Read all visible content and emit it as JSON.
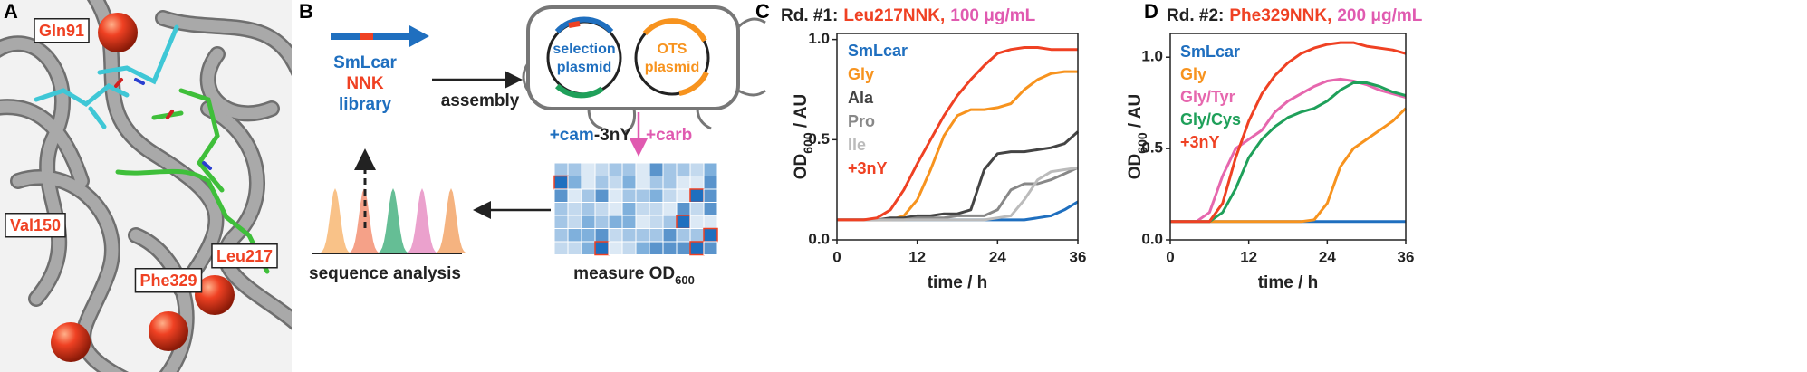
{
  "panel_labels": [
    "A",
    "B",
    "C",
    "D"
  ],
  "structure": {
    "residues": [
      "Gln91",
      "Val150",
      "Phe329",
      "Leu217"
    ]
  },
  "scheme": {
    "library": [
      "SmLcar",
      "NNK",
      "library"
    ],
    "assembly": "assembly",
    "selection_plasmid": [
      "selection",
      "plasmid"
    ],
    "ots_plasmid": [
      "OTS",
      "plasmid"
    ],
    "selection": {
      "cam": "+cam",
      "nY": "-3nY",
      "carb": "+carb"
    },
    "measure": {
      "text": "measure OD",
      "sub": "600"
    },
    "analysis": "sequence analysis"
  },
  "chart_data": [
    {
      "type": "line",
      "title": {
        "round": "Rd. #1:",
        "mutant": "Leu217NNK,",
        "conc": "100 μg/mL"
      },
      "ylabel": {
        "text": "OD",
        "sub": "600",
        "unit": " / AU"
      },
      "xlabel": "time / h",
      "x": [
        0,
        2,
        4,
        6,
        8,
        10,
        12,
        14,
        16,
        18,
        20,
        22,
        24,
        26,
        28,
        30,
        32,
        34,
        36
      ],
      "xlim": [
        0,
        36
      ],
      "xticks": [
        0,
        12,
        24,
        36
      ],
      "ylim": [
        0,
        1.03
      ],
      "yticks": [
        {
          "value": 0,
          "label": "0.0"
        },
        0.5,
        {
          "value": 1,
          "label": "1.0"
        }
      ],
      "series": [
        {
          "name": "SmLcar",
          "color": "#1f6fbf",
          "values": [
            0.1,
            0.1,
            0.1,
            0.1,
            0.1,
            0.1,
            0.1,
            0.1,
            0.1,
            0.1,
            0.1,
            0.1,
            0.1,
            0.1,
            0.1,
            0.11,
            0.12,
            0.15,
            0.19
          ]
        },
        {
          "name": "Gly",
          "color": "#f7931e",
          "values": [
            0.1,
            0.1,
            0.1,
            0.1,
            0.1,
            0.12,
            0.2,
            0.35,
            0.52,
            0.62,
            0.65,
            0.65,
            0.66,
            0.68,
            0.75,
            0.8,
            0.83,
            0.84,
            0.84
          ]
        },
        {
          "name": "Ala",
          "color": "#444444",
          "values": [
            0.1,
            0.1,
            0.1,
            0.1,
            0.11,
            0.11,
            0.12,
            0.12,
            0.13,
            0.13,
            0.15,
            0.35,
            0.43,
            0.44,
            0.44,
            0.45,
            0.46,
            0.48,
            0.54
          ]
        },
        {
          "name": "Pro",
          "color": "#888888",
          "values": [
            0.1,
            0.1,
            0.1,
            0.1,
            0.1,
            0.1,
            0.11,
            0.11,
            0.11,
            0.12,
            0.12,
            0.12,
            0.15,
            0.25,
            0.28,
            0.28,
            0.3,
            0.33,
            0.36
          ]
        },
        {
          "name": "Ile",
          "color": "#bbbbbb",
          "values": [
            0.1,
            0.1,
            0.1,
            0.1,
            0.1,
            0.1,
            0.1,
            0.1,
            0.1,
            0.1,
            0.1,
            0.1,
            0.11,
            0.12,
            0.2,
            0.3,
            0.34,
            0.35,
            0.36
          ]
        },
        {
          "name": "+3nY",
          "color": "#ef4123",
          "values": [
            0.1,
            0.1,
            0.1,
            0.11,
            0.15,
            0.25,
            0.38,
            0.5,
            0.62,
            0.72,
            0.8,
            0.87,
            0.93,
            0.95,
            0.96,
            0.96,
            0.95,
            0.95,
            0.95
          ]
        }
      ]
    },
    {
      "type": "line",
      "title": {
        "round": "Rd. #2:",
        "mutant": "Phe329NNK,",
        "conc": "200 μg/mL"
      },
      "ylabel": {
        "text": "OD",
        "sub": "600",
        "unit": " / AU"
      },
      "xlabel": "time / h",
      "x": [
        0,
        2,
        4,
        6,
        8,
        10,
        12,
        14,
        16,
        18,
        20,
        22,
        24,
        26,
        28,
        30,
        32,
        34,
        36
      ],
      "xlim": [
        0,
        36
      ],
      "xticks": [
        0,
        12,
        24,
        36
      ],
      "ylim": [
        0,
        1.13
      ],
      "yticks": [
        {
          "value": 0,
          "label": "0.0"
        },
        0.5,
        {
          "value": 1,
          "label": "1.0"
        }
      ],
      "series": [
        {
          "name": "SmLcar",
          "color": "#1f6fbf",
          "values": [
            0.1,
            0.1,
            0.1,
            0.1,
            0.1,
            0.1,
            0.1,
            0.1,
            0.1,
            0.1,
            0.1,
            0.1,
            0.1,
            0.1,
            0.1,
            0.1,
            0.1,
            0.1,
            0.1
          ]
        },
        {
          "name": "Gly",
          "color": "#f7931e",
          "values": [
            0.1,
            0.1,
            0.1,
            0.1,
            0.1,
            0.1,
            0.1,
            0.1,
            0.1,
            0.1,
            0.1,
            0.11,
            0.2,
            0.4,
            0.5,
            0.55,
            0.6,
            0.65,
            0.72
          ]
        },
        {
          "name": "Gly/Tyr",
          "color": "#e667ae",
          "values": [
            0.1,
            0.1,
            0.1,
            0.15,
            0.35,
            0.5,
            0.55,
            0.6,
            0.7,
            0.76,
            0.8,
            0.84,
            0.87,
            0.88,
            0.87,
            0.85,
            0.82,
            0.8,
            0.78
          ]
        },
        {
          "name": "Gly/Cys",
          "color": "#1fa05a",
          "values": [
            0.1,
            0.1,
            0.1,
            0.1,
            0.15,
            0.28,
            0.45,
            0.55,
            0.62,
            0.67,
            0.7,
            0.72,
            0.76,
            0.82,
            0.86,
            0.86,
            0.84,
            0.81,
            0.79
          ]
        },
        {
          "name": "+3nY",
          "color": "#ef4123",
          "values": [
            0.1,
            0.1,
            0.1,
            0.1,
            0.2,
            0.45,
            0.65,
            0.8,
            0.9,
            0.97,
            1.02,
            1.05,
            1.07,
            1.08,
            1.08,
            1.06,
            1.05,
            1.04,
            1.02
          ]
        }
      ]
    }
  ]
}
